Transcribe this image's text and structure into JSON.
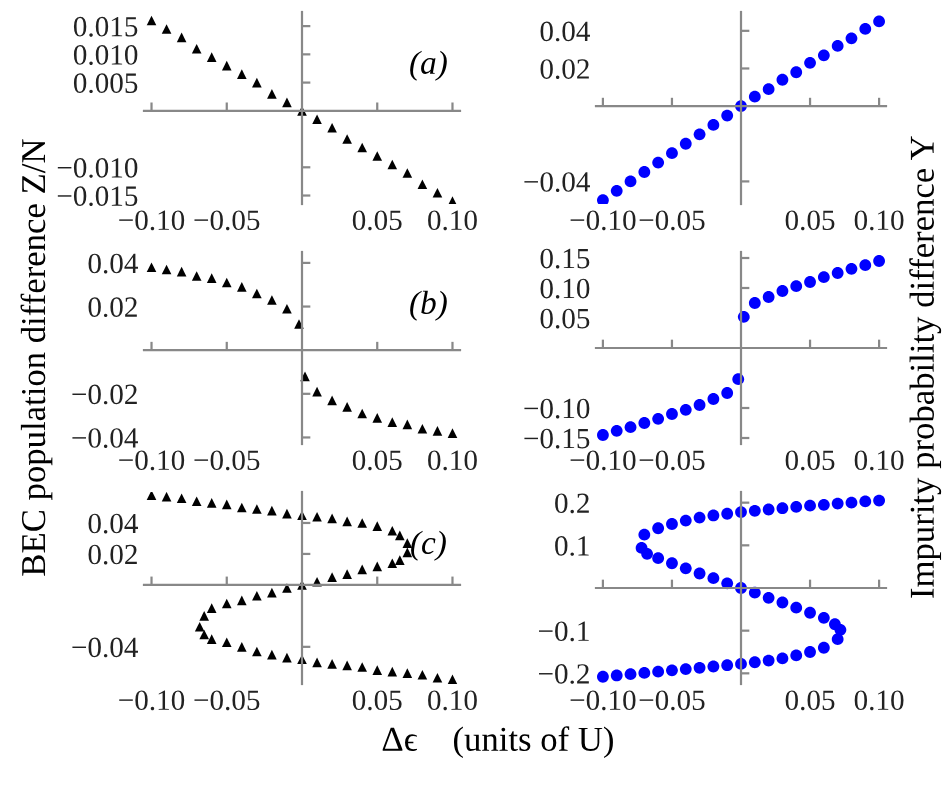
{
  "chart_data": [
    {
      "type": "scatter",
      "annotations": [
        "(a)"
      ],
      "marker": "triangle",
      "x": [
        -0.1,
        -0.09,
        -0.08,
        -0.07,
        -0.06,
        -0.05,
        -0.04,
        -0.03,
        -0.02,
        -0.01,
        0,
        0.01,
        0.02,
        0.03,
        0.04,
        0.05,
        0.06,
        0.07,
        0.08,
        0.09,
        0.1
      ],
      "series": [
        {
          "color": "#000000",
          "values": [
            0.016,
            0.0145,
            0.013,
            0.011,
            0.0095,
            0.008,
            0.0065,
            0.005,
            0.003,
            0.0015,
            0,
            -0.0015,
            -0.003,
            -0.005,
            -0.0065,
            -0.008,
            -0.0095,
            -0.011,
            -0.013,
            -0.0145,
            -0.016
          ]
        }
      ],
      "xlim": [
        -0.105,
        0.105
      ],
      "ylim": [
        -0.0165,
        0.0175
      ],
      "xticks": [
        {
          "value": -0.1,
          "label": "−0.10"
        },
        {
          "value": -0.05,
          "label": "−0.05"
        },
        {
          "value": 0.05,
          "label": "0.05"
        },
        {
          "value": 0.1,
          "label": "0.10"
        }
      ],
      "yticks": [
        {
          "value": -0.015,
          "label": "−0.015"
        },
        {
          "value": -0.01,
          "label": "−0.010"
        },
        {
          "value": 0.005,
          "label": "0.005"
        },
        {
          "value": 0.01,
          "label": "0.010"
        },
        {
          "value": 0.015,
          "label": "0.015"
        }
      ]
    },
    {
      "type": "scatter",
      "marker": "circle",
      "x": [
        -0.1,
        -0.09,
        -0.08,
        -0.07,
        -0.06,
        -0.05,
        -0.04,
        -0.03,
        -0.02,
        -0.01,
        0,
        0.01,
        0.02,
        0.03,
        0.04,
        0.05,
        0.06,
        0.07,
        0.08,
        0.09,
        0.1
      ],
      "series": [
        {
          "color": "#0000ff",
          "values": [
            -0.05,
            -0.045,
            -0.04,
            -0.035,
            -0.03,
            -0.025,
            -0.02,
            -0.015,
            -0.01,
            -0.005,
            0,
            0.005,
            0.009,
            0.014,
            0.018,
            0.023,
            0.027,
            0.032,
            0.036,
            0.041,
            0.045
          ]
        }
      ],
      "xlim": [
        -0.105,
        0.105
      ],
      "ylim": [
        -0.052,
        0.05
      ],
      "xticks": [
        {
          "value": -0.1,
          "label": "−0.10"
        },
        {
          "value": -0.05,
          "label": "−0.05"
        },
        {
          "value": 0.05,
          "label": "0.05"
        },
        {
          "value": 0.1,
          "label": "0.10"
        }
      ],
      "yticks": [
        {
          "value": -0.04,
          "label": "−0.04"
        },
        {
          "value": 0.02,
          "label": "0.02"
        },
        {
          "value": 0.04,
          "label": "0.04"
        }
      ]
    },
    {
      "type": "scatter",
      "annotations": [
        "(b)"
      ],
      "marker": "triangle",
      "ylabel": "BEC population difference Z/N",
      "x": [
        -0.1,
        -0.09,
        -0.08,
        -0.07,
        -0.06,
        -0.05,
        -0.04,
        -0.03,
        -0.02,
        -0.01,
        -0.002,
        0.002,
        0.01,
        0.02,
        0.03,
        0.04,
        0.05,
        0.06,
        0.07,
        0.08,
        0.09,
        0.1
      ],
      "series": [
        {
          "color": "#000000",
          "values": [
            0.038,
            0.037,
            0.036,
            0.034,
            0.033,
            0.031,
            0.029,
            0.026,
            0.023,
            0.019,
            0.012,
            -0.012,
            -0.019,
            -0.023,
            -0.026,
            -0.029,
            -0.031,
            -0.033,
            -0.034,
            -0.036,
            -0.037,
            -0.038
          ]
        }
      ],
      "xlim": [
        -0.105,
        0.105
      ],
      "ylim": [
        -0.043,
        0.045
      ],
      "xticks": [
        {
          "value": -0.1,
          "label": "−0.10"
        },
        {
          "value": -0.05,
          "label": "−0.05"
        },
        {
          "value": 0.05,
          "label": "0.05"
        },
        {
          "value": 0.1,
          "label": "0.10"
        }
      ],
      "yticks": [
        {
          "value": -0.04,
          "label": "−0.04"
        },
        {
          "value": -0.02,
          "label": "−0.02"
        },
        {
          "value": 0.02,
          "label": "0.02"
        },
        {
          "value": 0.04,
          "label": "0.04"
        }
      ]
    },
    {
      "type": "scatter",
      "marker": "circle",
      "ylabel": "Impurity probability difference Y",
      "x": [
        -0.1,
        -0.09,
        -0.08,
        -0.07,
        -0.06,
        -0.05,
        -0.04,
        -0.03,
        -0.02,
        -0.01,
        -0.002,
        0.002,
        0.01,
        0.02,
        0.03,
        0.04,
        0.05,
        0.06,
        0.07,
        0.08,
        0.09,
        0.1
      ],
      "series": [
        {
          "color": "#0000ff",
          "values": [
            -0.145,
            -0.138,
            -0.132,
            -0.125,
            -0.118,
            -0.11,
            -0.103,
            -0.095,
            -0.085,
            -0.075,
            -0.052,
            0.052,
            0.075,
            0.085,
            0.095,
            0.103,
            0.11,
            0.118,
            0.125,
            0.132,
            0.138,
            0.145
          ]
        }
      ],
      "xlim": [
        -0.105,
        0.105
      ],
      "ylim": [
        -0.16,
        0.16
      ],
      "xticks": [
        {
          "value": -0.1,
          "label": "−0.10"
        },
        {
          "value": -0.05,
          "label": "−0.05"
        },
        {
          "value": 0.05,
          "label": "0.05"
        },
        {
          "value": 0.1,
          "label": "0.10"
        }
      ],
      "yticks": [
        {
          "value": -0.15,
          "label": "−0.15"
        },
        {
          "value": -0.1,
          "label": "−0.10"
        },
        {
          "value": 0.05,
          "label": "0.05"
        },
        {
          "value": 0.1,
          "label": "0.10"
        },
        {
          "value": 0.15,
          "label": "0.15"
        }
      ]
    },
    {
      "type": "scatter",
      "annotations": [
        "(c)"
      ],
      "marker": "triangle",
      "xlabel": "Δϵ    (units of U)",
      "x": [
        -0.1,
        -0.09,
        -0.08,
        -0.07,
        -0.06,
        -0.05,
        -0.04,
        -0.03,
        -0.02,
        -0.01,
        0,
        0.01,
        0.02,
        0.03,
        0.04,
        0.05,
        0.06,
        0.065,
        0.07,
        0.07,
        0.065,
        0.06,
        0.05,
        0.04,
        0.03,
        0.02,
        0.01,
        0,
        -0.01,
        -0.02,
        -0.03,
        -0.04,
        -0.05,
        -0.06,
        -0.065,
        -0.068,
        -0.065,
        -0.06,
        -0.05,
        -0.04,
        -0.03,
        -0.02,
        -0.01,
        0,
        0.01,
        0.02,
        0.03,
        0.04,
        0.05,
        0.06,
        0.07,
        0.08,
        0.09,
        0.1
      ],
      "series": [
        {
          "color": "#000000",
          "values": [
            0.058,
            0.057,
            0.056,
            0.054,
            0.053,
            0.052,
            0.05,
            0.049,
            0.048,
            0.046,
            0.045,
            0.044,
            0.043,
            0.041,
            0.04,
            0.038,
            0.035,
            0.032,
            0.027,
            0.021,
            0.016,
            0.014,
            0.012,
            0.01,
            0.007,
            0.005,
            0.002,
            0,
            -0.002,
            -0.005,
            -0.007,
            -0.01,
            -0.012,
            -0.015,
            -0.02,
            -0.027,
            -0.032,
            -0.035,
            -0.037,
            -0.04,
            -0.043,
            -0.045,
            -0.047,
            -0.048,
            -0.05,
            -0.051,
            -0.052,
            -0.053,
            -0.055,
            -0.056,
            -0.057,
            -0.058,
            -0.06,
            -0.061
          ]
        }
      ],
      "xlim": [
        -0.105,
        0.105
      ],
      "ylim": [
        -0.064,
        0.06
      ],
      "xticks": [
        {
          "value": -0.1,
          "label": "−0.10"
        },
        {
          "value": -0.05,
          "label": "−0.05"
        },
        {
          "value": 0.05,
          "label": "0.05"
        },
        {
          "value": 0.1,
          "label": "0.10"
        }
      ],
      "yticks": [
        {
          "value": -0.04,
          "label": "−0.04"
        },
        {
          "value": 0.02,
          "label": "0.02"
        },
        {
          "value": 0.04,
          "label": "0.04"
        }
      ]
    },
    {
      "type": "scatter",
      "marker": "circle",
      "x": [
        0.1,
        0.09,
        0.08,
        0.07,
        0.06,
        0.05,
        0.04,
        0.03,
        0.02,
        0.01,
        0,
        -0.01,
        -0.02,
        -0.03,
        -0.04,
        -0.05,
        -0.06,
        -0.07,
        -0.072,
        -0.068,
        -0.06,
        -0.05,
        -0.04,
        -0.03,
        -0.02,
        -0.01,
        0,
        0.01,
        0.02,
        0.03,
        0.04,
        0.05,
        0.06,
        0.068,
        0.072,
        0.07,
        0.06,
        0.05,
        0.04,
        0.03,
        0.02,
        0.01,
        0,
        -0.01,
        -0.02,
        -0.03,
        -0.04,
        -0.05,
        -0.06,
        -0.07,
        -0.08,
        -0.09,
        -0.1
      ],
      "series": [
        {
          "color": "#0000ff",
          "values": [
            0.205,
            0.203,
            0.2,
            0.198,
            0.195,
            0.193,
            0.19,
            0.187,
            0.184,
            0.181,
            0.178,
            0.174,
            0.17,
            0.165,
            0.158,
            0.15,
            0.14,
            0.125,
            0.094,
            0.08,
            0.07,
            0.058,
            0.046,
            0.034,
            0.023,
            0.011,
            0,
            -0.011,
            -0.023,
            -0.034,
            -0.046,
            -0.058,
            -0.07,
            -0.085,
            -0.098,
            -0.12,
            -0.14,
            -0.15,
            -0.158,
            -0.165,
            -0.17,
            -0.174,
            -0.178,
            -0.181,
            -0.184,
            -0.187,
            -0.19,
            -0.193,
            -0.196,
            -0.199,
            -0.202,
            -0.205,
            -0.208
          ]
        }
      ],
      "xlim": [
        -0.105,
        0.105
      ],
      "ylim": [
        -0.225,
        0.225
      ],
      "xticks": [
        {
          "value": -0.1,
          "label": "−0.10"
        },
        {
          "value": -0.05,
          "label": "−0.05"
        },
        {
          "value": 0.05,
          "label": "0.05"
        },
        {
          "value": 0.1,
          "label": "0.10"
        }
      ],
      "yticks": [
        {
          "value": -0.2,
          "label": "−0.2"
        },
        {
          "value": -0.1,
          "label": "−0.1"
        },
        {
          "value": 0.1,
          "label": "0.1"
        },
        {
          "value": 0.2,
          "label": "0.2"
        }
      ]
    }
  ]
}
